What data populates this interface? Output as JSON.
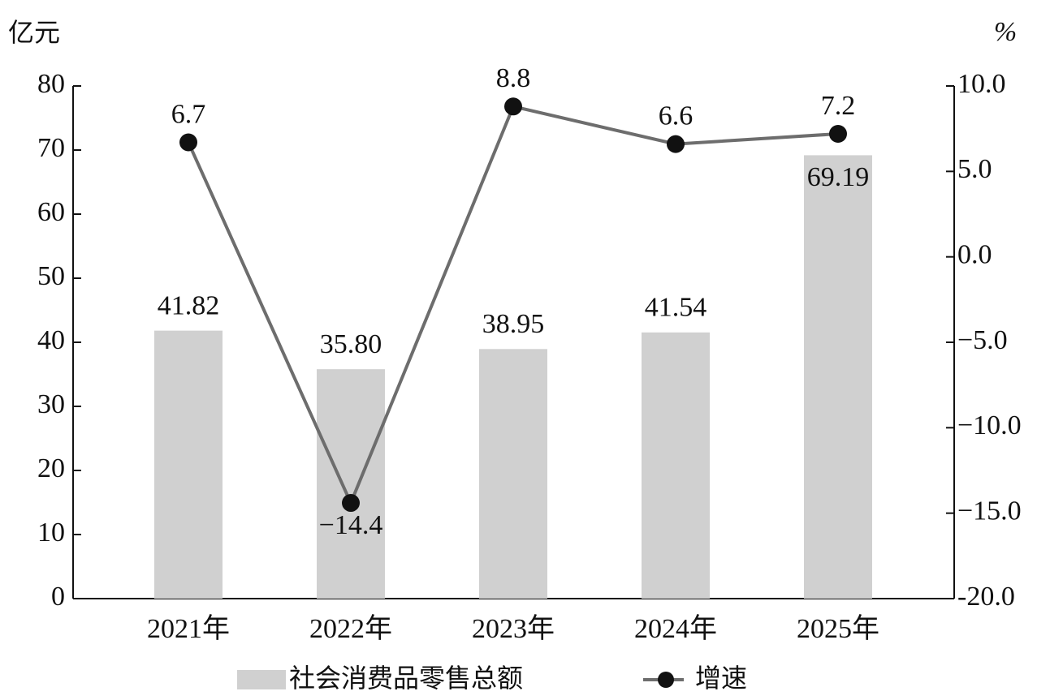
{
  "chart_data": {
    "type": "bar",
    "y_axis_label": "亿元",
    "y2_axis_label": "%",
    "categories": [
      "2021年",
      "2022年",
      "2023年",
      "2024年",
      "2025年"
    ],
    "series": [
      {
        "name": "社会消费品零售总额",
        "type": "bar",
        "color": "#d0d0d0",
        "values": [
          41.82,
          35.8,
          38.95,
          41.54,
          69.19
        ],
        "value_labels": [
          "41.82",
          "35.80",
          "38.95",
          "41.54",
          "69.19"
        ]
      },
      {
        "name": "增速",
        "type": "line",
        "axis": "y2",
        "color": "#6d6d6d",
        "marker_color": "#111111",
        "values": [
          6.7,
          -14.4,
          8.8,
          6.6,
          7.2
        ],
        "value_labels": [
          "6.7",
          "−14.4",
          "8.8",
          "6.6",
          "7.2"
        ]
      }
    ],
    "ylim": [
      0,
      80
    ],
    "yticks": [
      0,
      10,
      20,
      30,
      40,
      50,
      60,
      70,
      80
    ],
    "y2lim": [
      -20,
      10
    ],
    "y2ticks": [
      {
        "value": -20,
        "label": "-20.0"
      },
      {
        "value": -15,
        "label": "−15.0"
      },
      {
        "value": -10,
        "label": "−10.0"
      },
      {
        "value": -5,
        "label": "−5.0"
      },
      {
        "value": 0,
        "label": "0.0"
      },
      {
        "value": 5,
        "label": "5.0"
      },
      {
        "value": 10,
        "label": "10.0"
      }
    ],
    "grid": false,
    "legend": "bottom"
  }
}
